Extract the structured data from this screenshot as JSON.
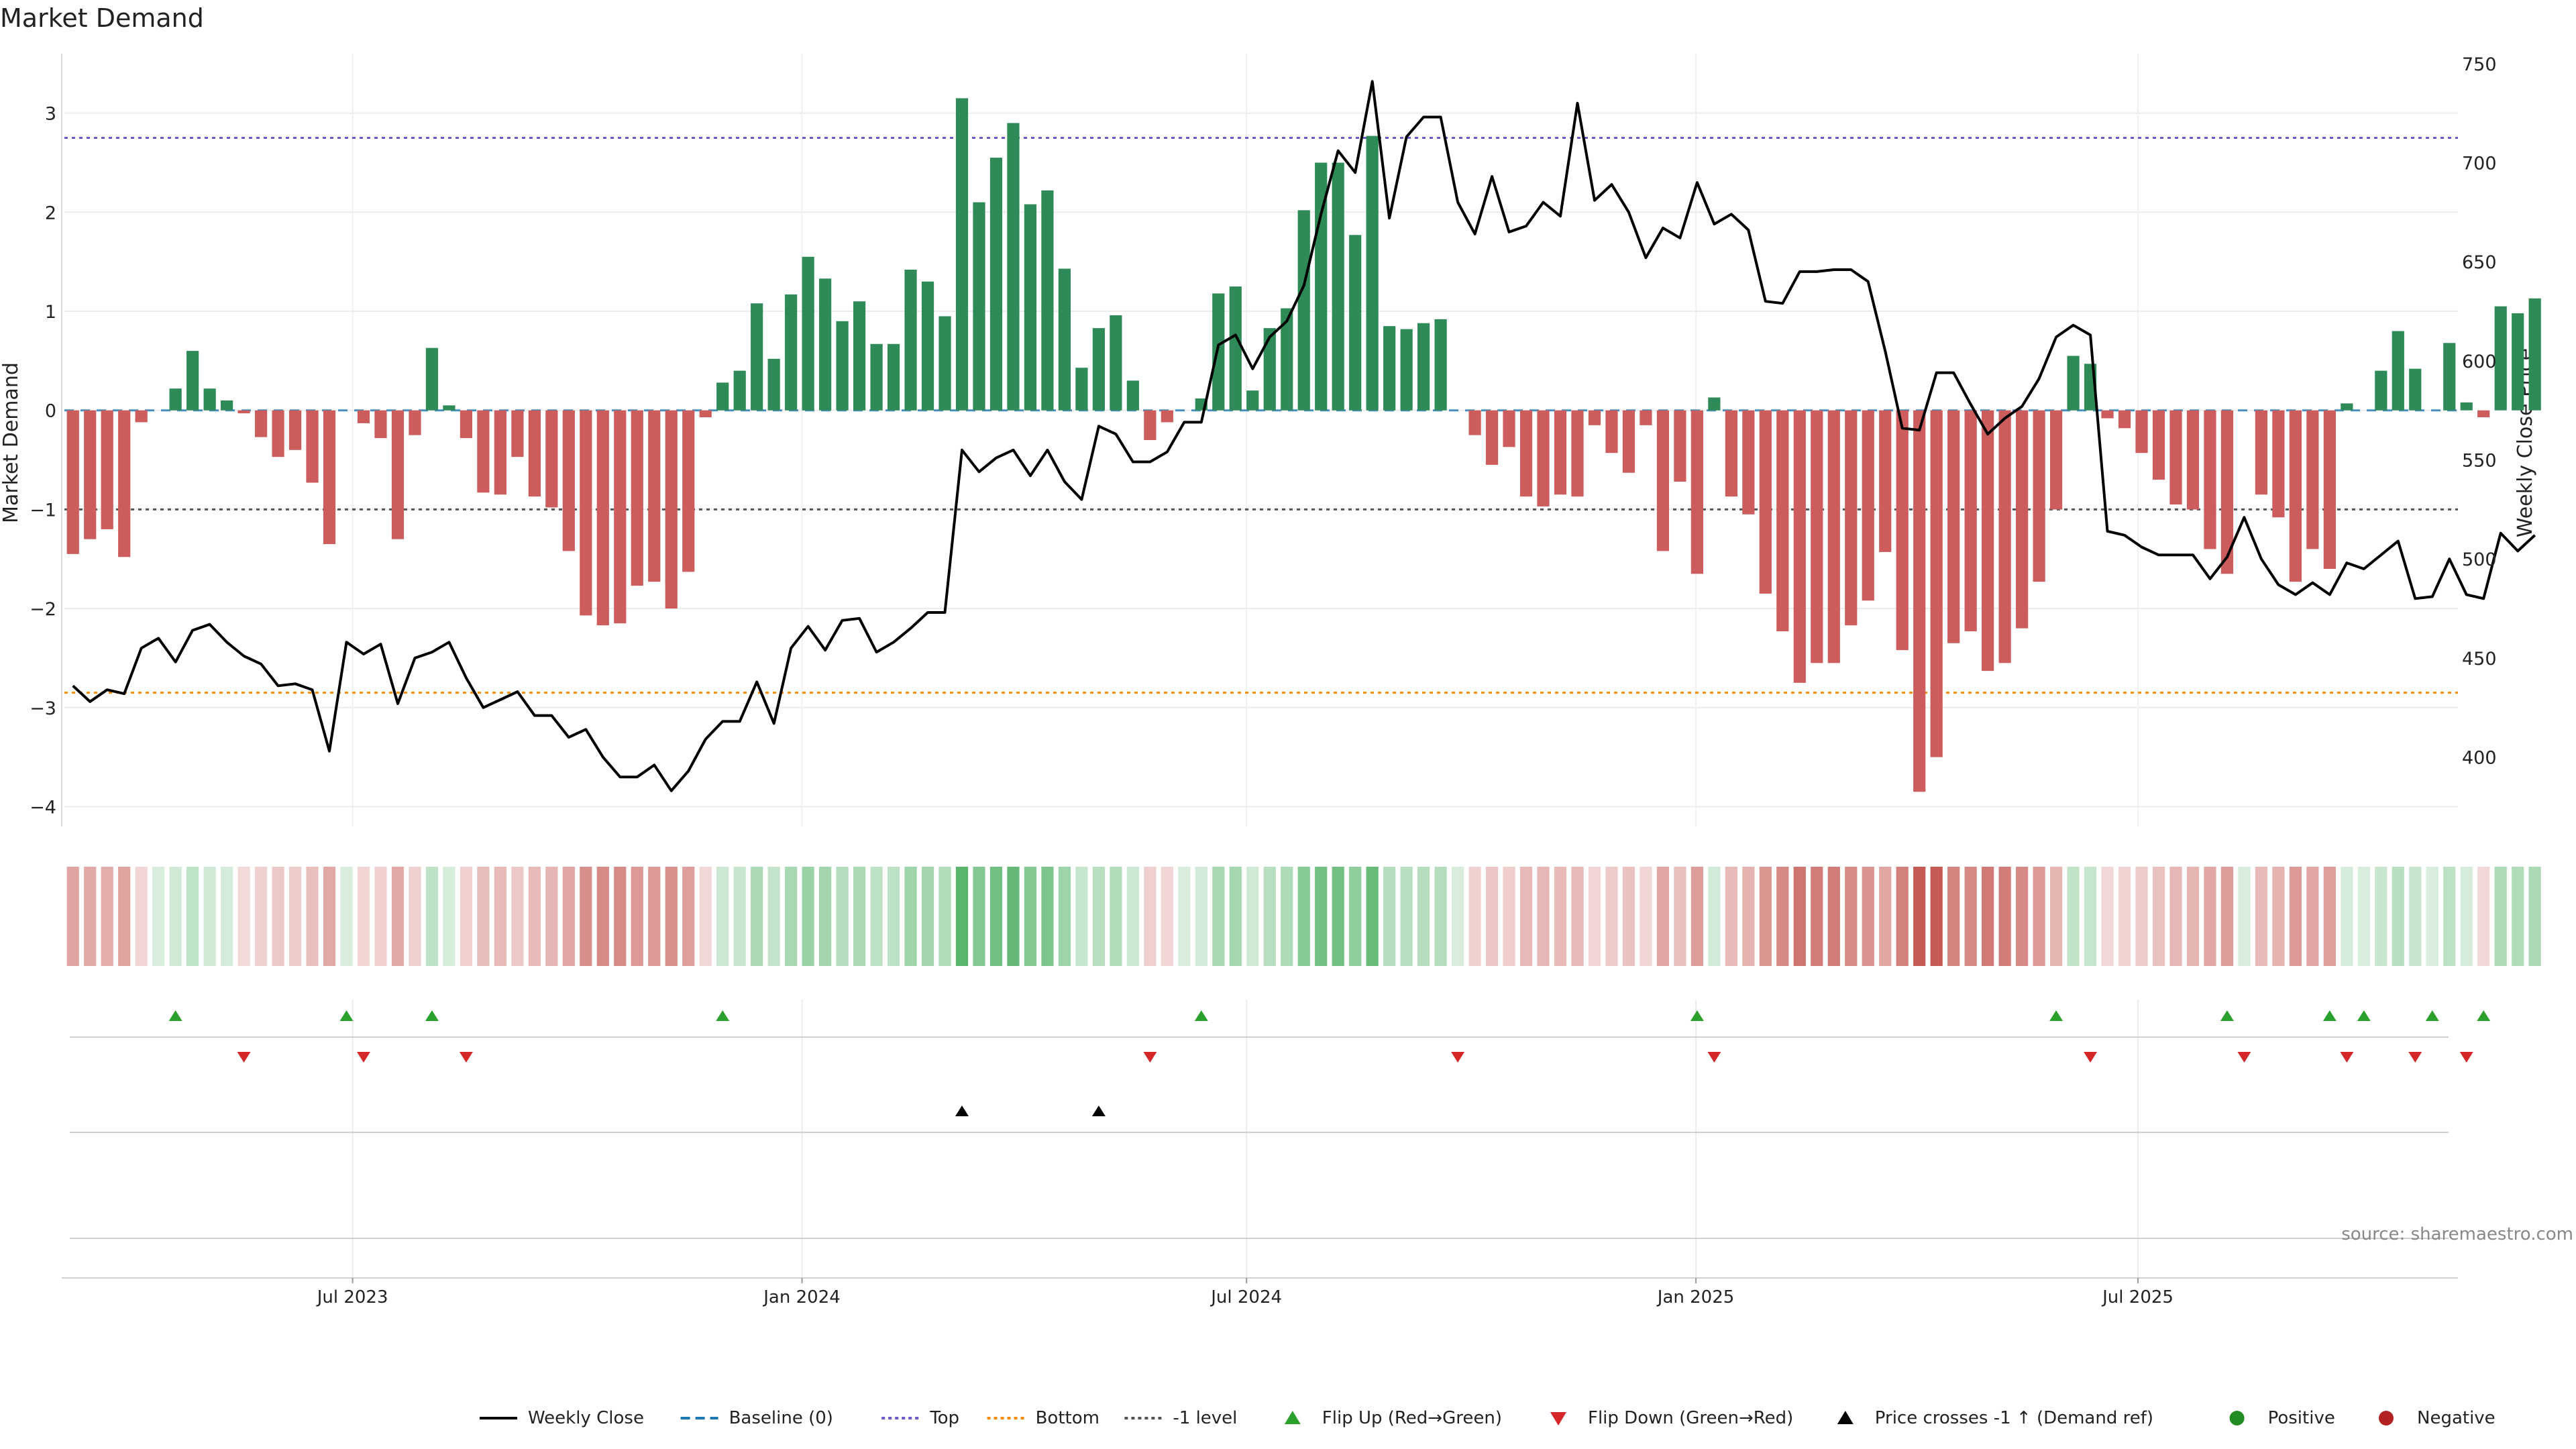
{
  "chart_data": {
    "type": "bar",
    "title": "Market Demand",
    "ylabel_left": "Market Demand",
    "ylabel_right": "Weekly Close Price",
    "source": "source: sharemaestro.com",
    "x_start": "2023-03-05",
    "x_end": "2025-11-09",
    "ylim_left": [
      -4.2,
      3.6
    ],
    "ylim_right": [
      365,
      755
    ],
    "yticks_left": [
      3,
      2,
      1,
      0,
      -1,
      -2,
      -3,
      -4
    ],
    "yticks_left_labels": [
      "3",
      "2",
      "1",
      "0",
      "−1",
      "−2",
      "−3",
      "−4"
    ],
    "yticks_right": [
      750,
      700,
      650,
      600,
      550,
      500,
      450,
      400
    ],
    "yticks_right_labels": [
      "750",
      "700",
      "650",
      "600",
      "550",
      "500",
      "450",
      "400"
    ],
    "xticks": [
      {
        "date": "2023-07-01",
        "label": "Jul 2023"
      },
      {
        "date": "2024-01-01",
        "label": "Jan 2024"
      },
      {
        "date": "2024-07-01",
        "label": "Jul 2024"
      },
      {
        "date": "2025-01-01",
        "label": "Jan 2025"
      },
      {
        "date": "2025-07-01",
        "label": "Jul 2025"
      }
    ],
    "reference_lines": {
      "top": 2.75,
      "bottom": -2.85,
      "minus_one": -1.0
    },
    "demand": [
      -1.45,
      -1.3,
      -1.2,
      -1.48,
      -0.12,
      0.0,
      0.22,
      0.6,
      0.22,
      0.1,
      -0.03,
      -0.27,
      -0.47,
      -0.4,
      -0.73,
      -1.35,
      0.0,
      -0.13,
      -0.28,
      -1.3,
      -0.25,
      0.63,
      0.05,
      -0.28,
      -0.83,
      -0.85,
      -0.47,
      -0.87,
      -0.98,
      -1.42,
      -2.07,
      -2.17,
      -2.15,
      -1.77,
      -1.73,
      -2.0,
      -1.63,
      -0.07,
      0.28,
      0.4,
      1.08,
      0.52,
      1.17,
      1.55,
      1.33,
      0.9,
      1.1,
      0.67,
      0.67,
      1.42,
      1.3,
      0.95,
      3.15,
      2.1,
      2.55,
      2.9,
      2.08,
      2.22,
      1.43,
      0.43,
      0.83,
      0.96,
      0.3,
      -0.3,
      -0.12,
      0.0,
      0.12,
      1.18,
      1.25,
      0.2,
      0.83,
      1.03,
      2.02,
      2.5,
      2.5,
      1.77,
      2.77,
      0.85,
      0.82,
      0.88,
      0.92,
      0.0,
      -0.25,
      -0.55,
      -0.37,
      -0.87,
      -0.97,
      -0.85,
      -0.87,
      -0.15,
      -0.43,
      -0.63,
      -0.15,
      -1.42,
      -0.72,
      -1.65,
      0.13,
      -0.87,
      -1.05,
      -1.85,
      -2.23,
      -2.75,
      -2.55,
      -2.55,
      -2.17,
      -1.92,
      -1.43,
      -2.42,
      -3.85,
      -3.5,
      -2.35,
      -2.23,
      -2.63,
      -2.55,
      -2.2,
      -1.73,
      -1.0,
      0.55,
      0.47,
      -0.08,
      -0.18,
      -0.43,
      -0.7,
      -0.95,
      -1.0,
      -1.4,
      -1.65,
      0.0,
      -0.85,
      -1.08,
      -1.73,
      -1.4,
      -1.6,
      0.07,
      0.0,
      0.4,
      0.8,
      0.42,
      0.0,
      0.68,
      0.08,
      -0.07,
      1.05,
      0.98,
      1.13
    ],
    "series": [
      {
        "name": "Weekly Close",
        "values": [
          436,
          428,
          434,
          432,
          455,
          460,
          448,
          464,
          467,
          458,
          451,
          447,
          436,
          437,
          434,
          403,
          458,
          452,
          457,
          427,
          450,
          453,
          458,
          440,
          425,
          429,
          433,
          421,
          421,
          410,
          414,
          400,
          390,
          390,
          396,
          383,
          393,
          409,
          418,
          418,
          438,
          417,
          455,
          466,
          454,
          469,
          470,
          453,
          458,
          465,
          473,
          473,
          555,
          544,
          551,
          555,
          542,
          555,
          539,
          530,
          567,
          563,
          549,
          549,
          554,
          569,
          569,
          608,
          613,
          596,
          612,
          620,
          638,
          674,
          706,
          695,
          741,
          672,
          713,
          723,
          723,
          680,
          664,
          693,
          665,
          668,
          680,
          673,
          730,
          681,
          689,
          675,
          652,
          667,
          662,
          690,
          669,
          674,
          666,
          630,
          629,
          645,
          645,
          646,
          646,
          640,
          605,
          566,
          565,
          594,
          594,
          578,
          563,
          571,
          577,
          591,
          612,
          618,
          613,
          514,
          512,
          506,
          502,
          502,
          502,
          490,
          501,
          521,
          500,
          487,
          482,
          488,
          482,
          498,
          495,
          502,
          509,
          480,
          481,
          500,
          482,
          480,
          513,
          504,
          512
        ]
      },
      {
        "name": "Baseline (0)"
      },
      {
        "name": "Top"
      },
      {
        "name": "Bottom"
      },
      {
        "name": "-1 level"
      }
    ],
    "heatmap": {
      "row": "demand strength per week",
      "positive_color": "#2e8b57",
      "negative_color": "#cd5c5c"
    },
    "flip_up_weeks": [
      6,
      16,
      21,
      38,
      66,
      95,
      116,
      126,
      132,
      134,
      138,
      141
    ],
    "flip_down_weeks": [
      10,
      17,
      23,
      63,
      81,
      96,
      118,
      127,
      133,
      137,
      140
    ],
    "price_cross_weeks": [
      52,
      60
    ],
    "legend": [
      {
        "key": "close",
        "label": "Weekly Close"
      },
      {
        "key": "baseline",
        "label": "Baseline (0)"
      },
      {
        "key": "top",
        "label": "Top"
      },
      {
        "key": "bottom",
        "label": "Bottom"
      },
      {
        "key": "minus1",
        "label": "-1 level"
      },
      {
        "key": "flipup",
        "label": "Flip Up (Red→Green)"
      },
      {
        "key": "flipdown",
        "label": "Flip Down (Green→Red)"
      },
      {
        "key": "cross",
        "label": "Price crosses -1 ↑ (Demand ref)"
      },
      {
        "key": "positive",
        "label": "Positive"
      },
      {
        "key": "negative",
        "label": "Negative"
      }
    ],
    "legend_position": "bottom-center",
    "colors": {
      "positive": "#2e8b57",
      "negative": "#cd5c5c",
      "close": "#000000",
      "baseline": "#1f77b4",
      "top": "#6a5acd",
      "bottom": "#ff8c00",
      "minus1": "#555555",
      "flip_up": "#2ca02c",
      "flip_down": "#d62728",
      "cross": "#000000",
      "legend_positive": "#228b22",
      "legend_negative": "#b22222"
    }
  }
}
